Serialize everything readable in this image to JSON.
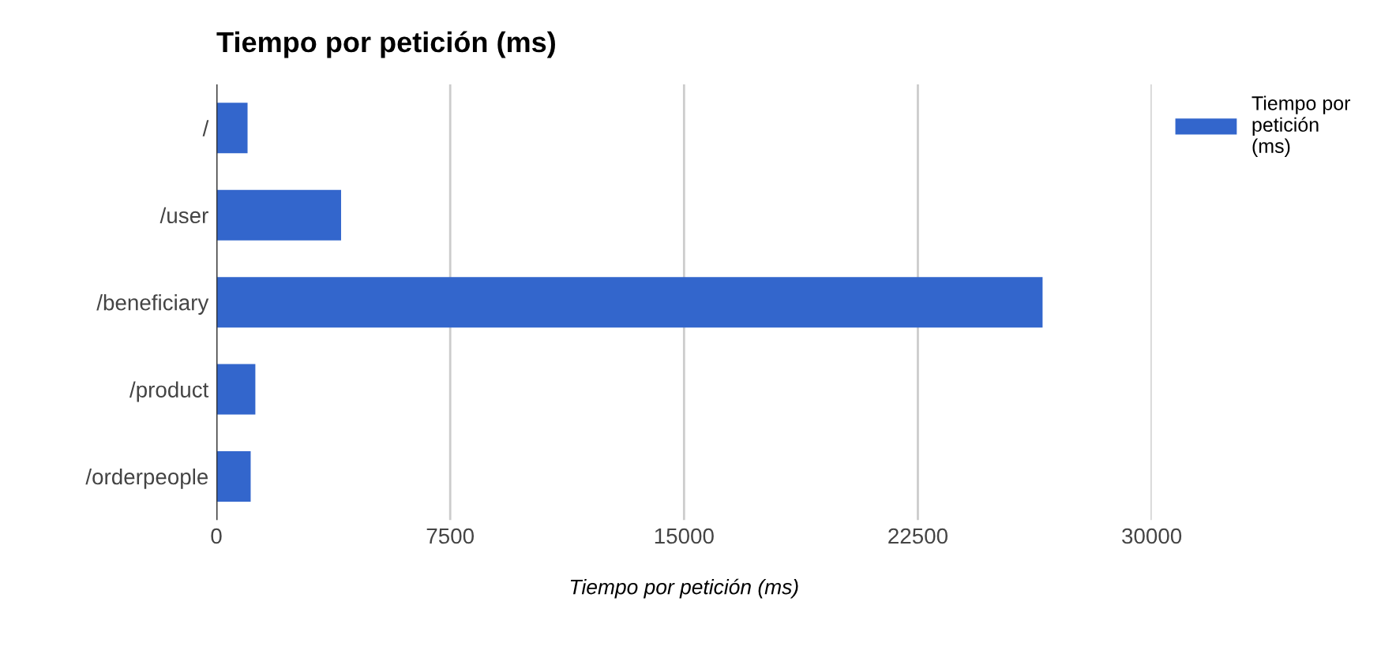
{
  "chart_data": {
    "type": "bar",
    "orientation": "horizontal",
    "title": "Tiempo por petición (ms)",
    "xlabel": "Tiempo por petición (ms)",
    "categories": [
      "/",
      "/user",
      "/beneficiary",
      "/product",
      "/orderpeople"
    ],
    "series": [
      {
        "name": "Tiempo por petición (ms)",
        "color": "#3366cc",
        "values": [
          1000,
          4000,
          26500,
          1250,
          1100
        ]
      }
    ],
    "xlim": [
      0,
      30000
    ],
    "xticks": [
      0,
      7500,
      15000,
      22500,
      30000
    ],
    "grid": "x",
    "legend": "top right"
  }
}
